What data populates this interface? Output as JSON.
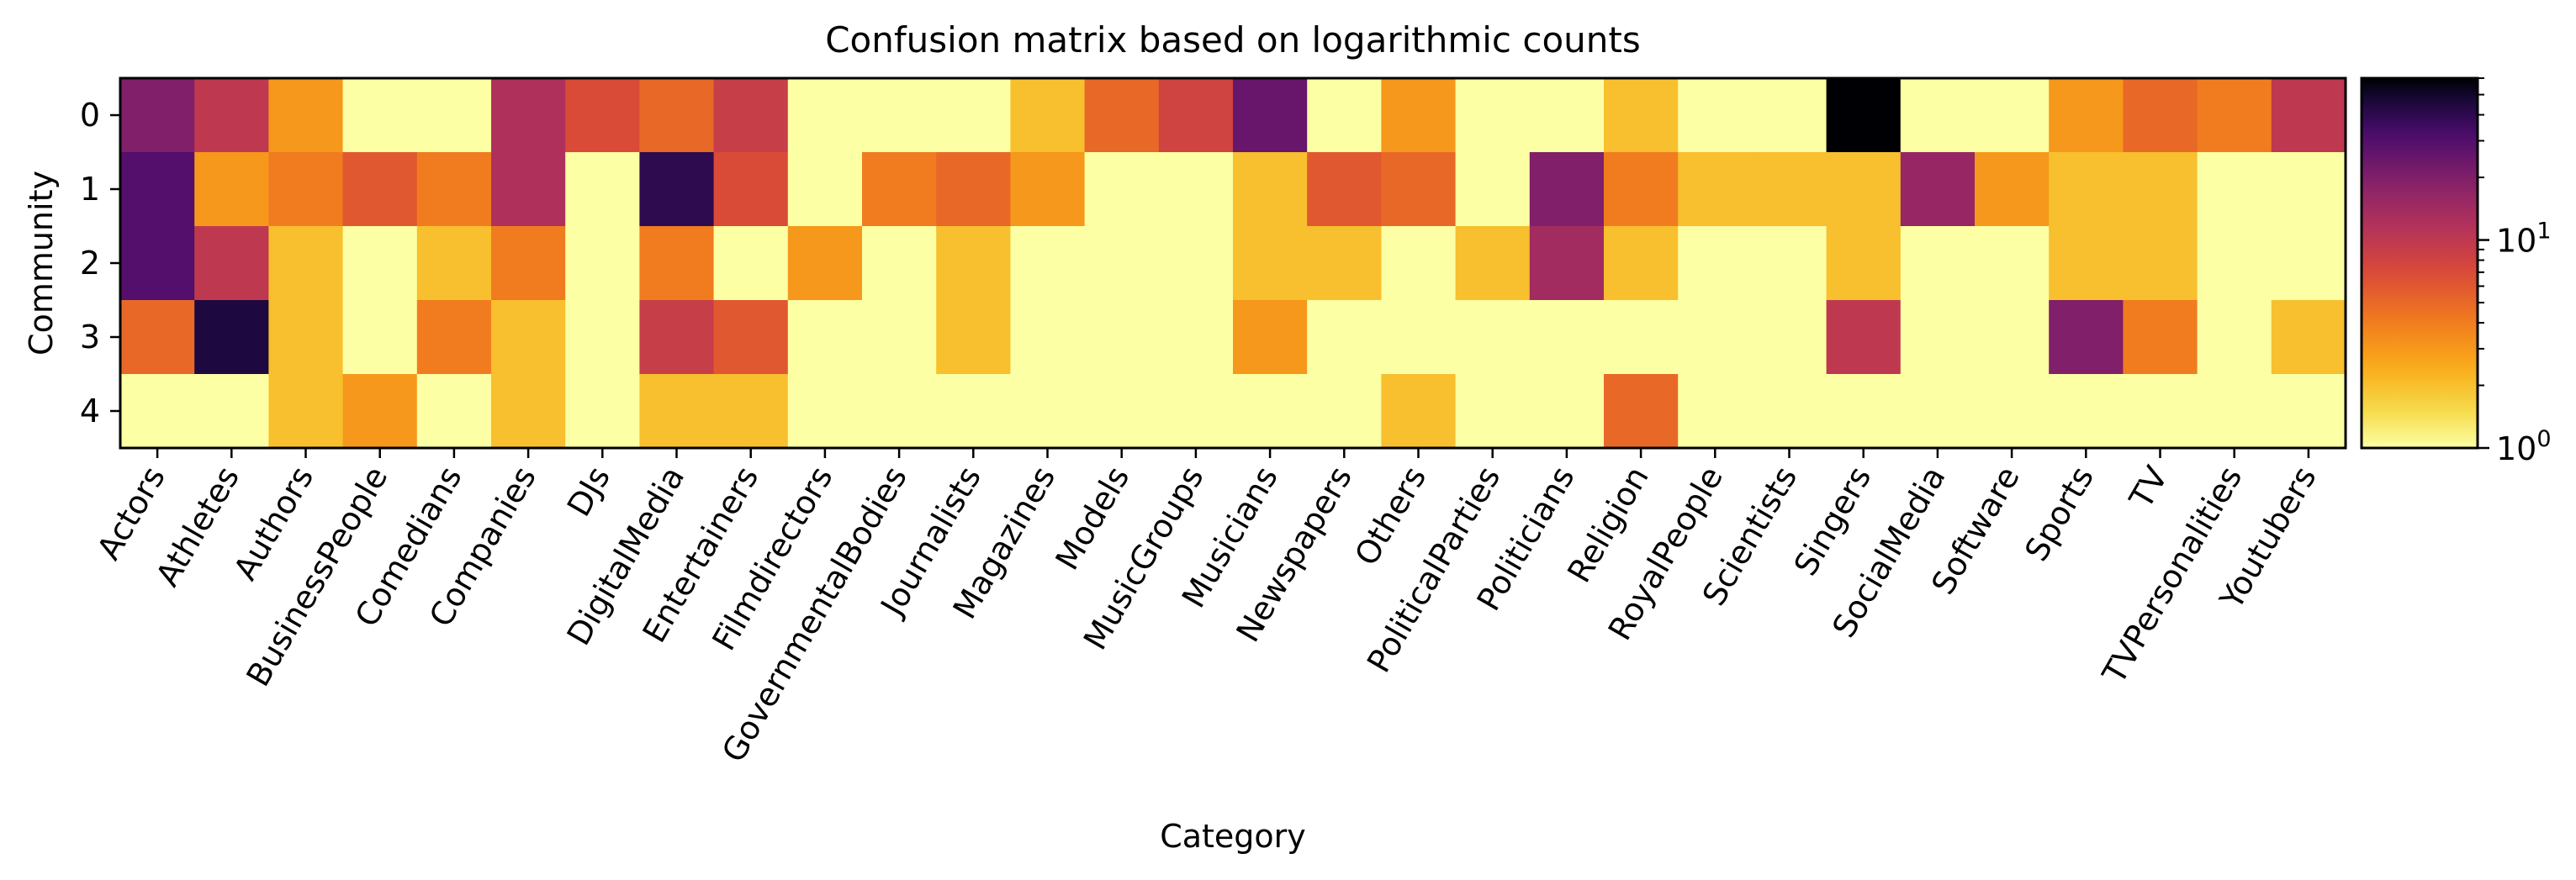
{
  "chart_data": {
    "type": "heatmap",
    "title": "Confusion matrix based on logarithmic counts",
    "xlabel": "Category",
    "ylabel": "Community",
    "colormap": "inferno_r",
    "color_scale": "log",
    "colorbar": {
      "min": 1,
      "max": 60,
      "major_ticks": [
        {
          "value": 1,
          "base": "10",
          "exp": "0"
        },
        {
          "value": 10,
          "base": "10",
          "exp": "1"
        }
      ],
      "minor_ticks": [
        2,
        3,
        4,
        5,
        6,
        7,
        8,
        9,
        20,
        30,
        40,
        50,
        60
      ]
    },
    "rows": [
      "0",
      "1",
      "2",
      "3",
      "4"
    ],
    "columns": [
      "Actors",
      "Athletes",
      "Authors",
      "BusinessPeople",
      "Comedians",
      "Companies",
      "DJs",
      "DigitalMedia",
      "Entertainers",
      "Filmdirectors",
      "GovernmentalBodies",
      "Journalists",
      "Magazines",
      "Models",
      "MusicGroups",
      "Musicians",
      "Newspapers",
      "Others",
      "PoliticalParties",
      "Politicians",
      "Religion",
      "RoyalPeople",
      "Scientists",
      "Singers",
      "SocialMedia",
      "Software",
      "Sports",
      "TV",
      "TVPersonalities",
      "Youtubers"
    ],
    "values": [
      [
        20,
        10,
        3,
        1,
        1,
        12,
        7,
        5,
        9,
        1,
        1,
        1,
        2,
        5,
        8,
        25,
        1,
        3,
        1,
        1,
        2,
        1,
        1,
        60,
        1,
        1,
        3,
        5,
        4,
        10
      ],
      [
        30,
        3,
        4,
        6,
        4,
        12,
        1,
        40,
        7,
        1,
        4,
        5,
        3,
        1,
        1,
        2,
        6,
        5,
        1,
        20,
        4,
        2,
        2,
        2,
        16,
        3,
        2,
        2,
        1,
        1
      ],
      [
        30,
        10,
        2,
        1,
        2,
        4,
        1,
        4,
        1,
        3,
        1,
        2,
        1,
        1,
        1,
        2,
        2,
        1,
        2,
        14,
        2,
        1,
        1,
        2,
        1,
        1,
        2,
        2,
        1,
        1
      ],
      [
        5,
        45,
        2,
        1,
        4,
        2,
        1,
        9,
        6,
        1,
        1,
        2,
        1,
        1,
        1,
        3,
        1,
        1,
        1,
        1,
        1,
        1,
        1,
        10,
        1,
        1,
        20,
        4,
        1,
        2
      ],
      [
        1,
        1,
        2,
        3,
        1,
        2,
        1,
        2,
        2,
        1,
        1,
        1,
        1,
        1,
        1,
        1,
        1,
        2,
        1,
        1,
        5,
        1,
        1,
        1,
        1,
        1,
        1,
        1,
        1,
        1
      ]
    ]
  }
}
